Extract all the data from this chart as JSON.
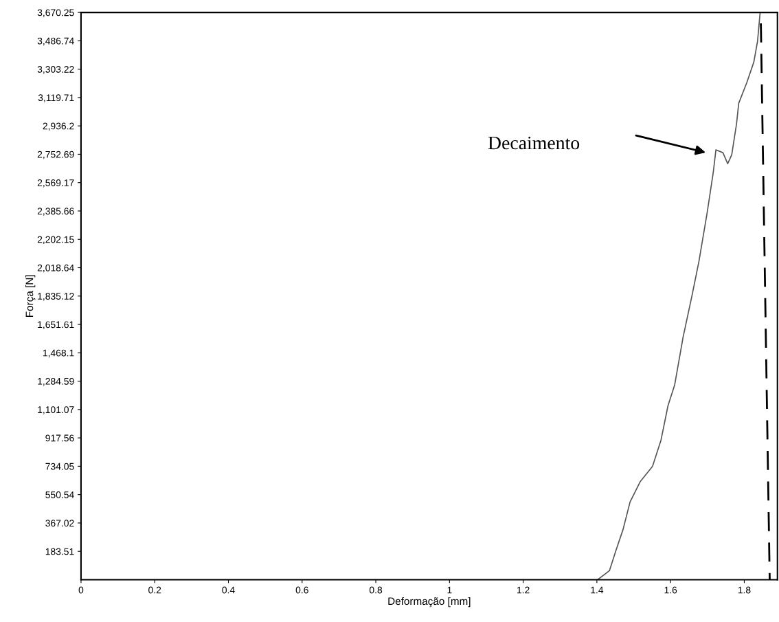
{
  "chart_data": {
    "type": "line",
    "xlabel": "Deformação [mm]",
    "ylabel": "Força [N]",
    "xlim": [
      0,
      1.89
    ],
    "ylim": [
      0,
      3670.25
    ],
    "xticks": [
      0,
      0.2,
      0.4,
      0.6,
      0.8,
      1,
      1.2,
      1.4,
      1.6,
      1.8
    ],
    "yticks": [
      {
        "value": 183.51,
        "label": "183.51"
      },
      {
        "value": 367.02,
        "label": "367.02"
      },
      {
        "value": 550.54,
        "label": "550.54"
      },
      {
        "value": 734.05,
        "label": "734.05"
      },
      {
        "value": 917.56,
        "label": "917.56"
      },
      {
        "value": 1101.07,
        "label": "1,101.07"
      },
      {
        "value": 1284.59,
        "label": "1,284.59"
      },
      {
        "value": 1468.1,
        "label": "1,468.1"
      },
      {
        "value": 1651.61,
        "label": "1,651.61"
      },
      {
        "value": 1835.12,
        "label": "1,835.12"
      },
      {
        "value": 2018.64,
        "label": "2,018.64"
      },
      {
        "value": 2202.15,
        "label": "2,202.15"
      },
      {
        "value": 2385.66,
        "label": "2,385.66"
      },
      {
        "value": 2569.17,
        "label": "2,569.17"
      },
      {
        "value": 2752.69,
        "label": "2,752.69"
      },
      {
        "value": 2936.2,
        "label": "2,936.2"
      },
      {
        "value": 3119.71,
        "label": "3,119.71"
      },
      {
        "value": 3303.22,
        "label": "3,303.22"
      },
      {
        "value": 3486.74,
        "label": "3,486.74"
      },
      {
        "value": 3670.25,
        "label": "3,670.25"
      }
    ],
    "grid": false,
    "legend": false,
    "series": [
      {
        "color": "#555555",
        "line_style": "solid",
        "x": [
          0,
          1.402,
          1.434,
          1.452,
          1.471,
          1.49,
          1.518,
          1.551,
          1.574,
          1.593,
          1.611,
          1.634,
          1.658,
          1.677,
          1.699,
          1.716,
          1.723,
          1.742,
          1.755,
          1.766,
          1.779,
          1.785,
          1.807,
          1.826,
          1.836,
          1.843
        ],
        "values": [
          0,
          0,
          58,
          191,
          325,
          503,
          636,
          734,
          903,
          1126,
          1259,
          1570,
          1837,
          2060,
          2371,
          2638,
          2781,
          2763,
          2692,
          2750,
          2950,
          3083,
          3217,
          3350,
          3484,
          3670
        ]
      },
      {
        "color": "#000000",
        "line_style": "dashed",
        "x": [
          1.845,
          1.869
        ],
        "values": [
          3600,
          0
        ]
      }
    ],
    "annotations": [
      "Decaimento"
    ]
  }
}
